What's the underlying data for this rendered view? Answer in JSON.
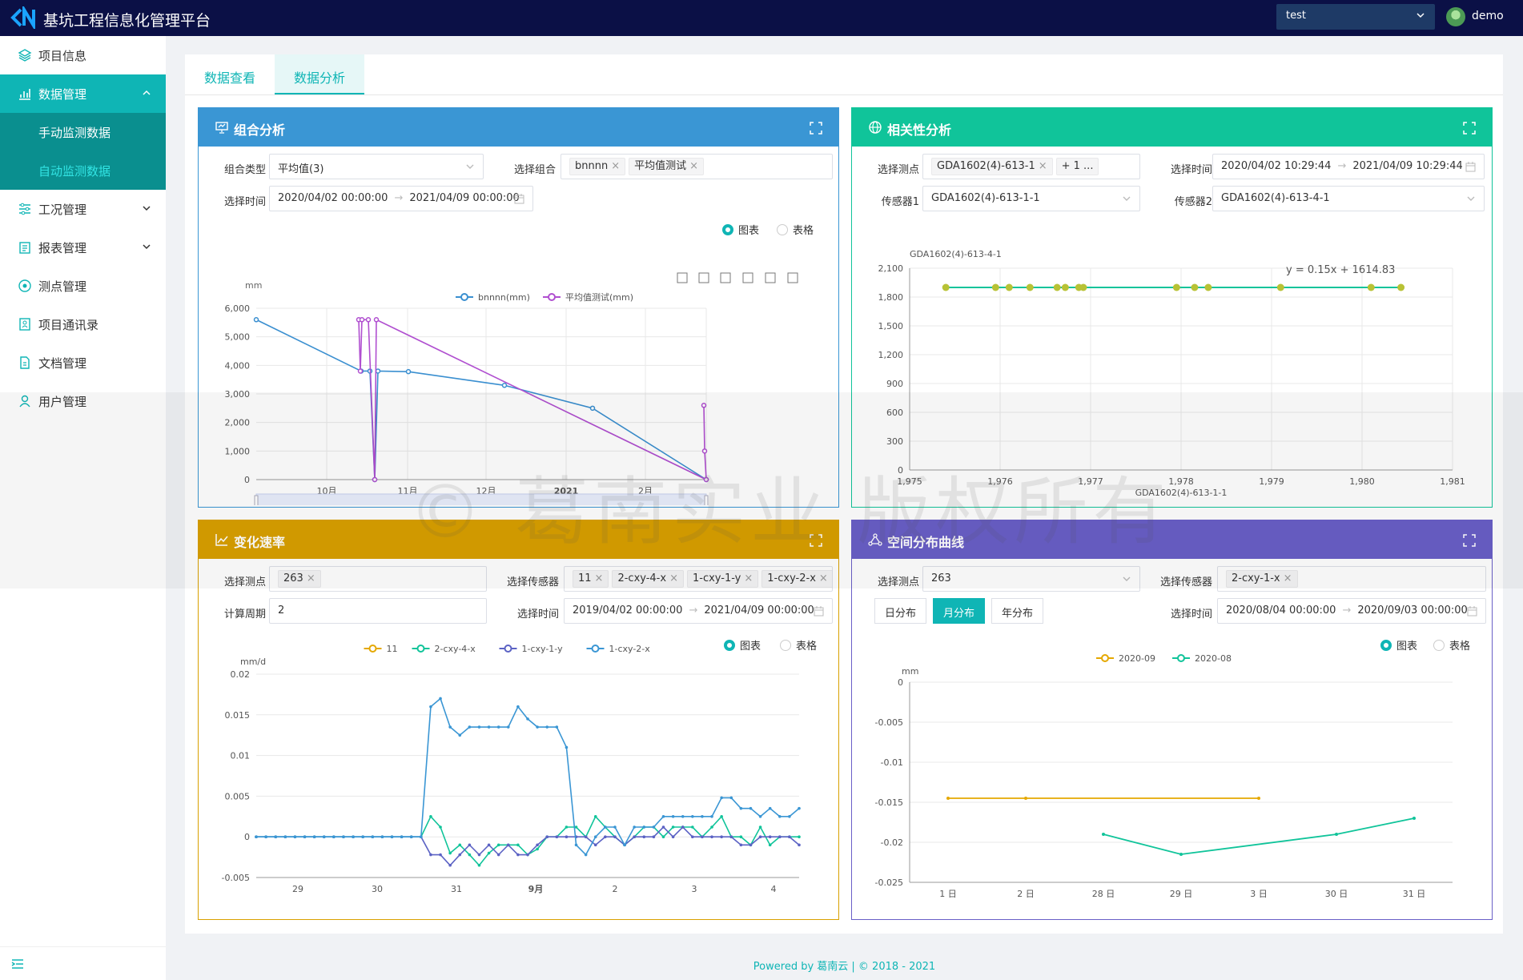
{
  "app": {
    "title": "基坑工程信息化管理平台",
    "project": "test",
    "user": "demo"
  },
  "colors": {
    "header": "#0b1046",
    "accent": "#0fb5b5",
    "combo": "#3a96d4",
    "corr": "#10c49a",
    "rate": "#d9a000",
    "spatial": "#6a5fc7"
  },
  "sidebar": {
    "items": [
      {
        "label": "项目信息",
        "icon": "layers-icon"
      },
      {
        "label": "数据管理",
        "icon": "bar-chart-icon",
        "children": [
          "手动监测数据",
          "自动监测数据"
        ]
      },
      {
        "label": "工况管理",
        "icon": "sliders-icon"
      },
      {
        "label": "报表管理",
        "icon": "clipboard-icon"
      },
      {
        "label": "测点管理",
        "icon": "target-icon"
      },
      {
        "label": "项目通讯录",
        "icon": "contacts-icon"
      },
      {
        "label": "文档管理",
        "icon": "document-icon"
      },
      {
        "label": "用户管理",
        "icon": "user-icon"
      }
    ]
  },
  "tabs": [
    "数据查看",
    "数据分析"
  ],
  "common": {
    "chart": "图表",
    "table": "表格"
  },
  "combo": {
    "title": "组合分析",
    "type_label": "组合类型",
    "type_value": "平均值(3)",
    "group_label": "选择组合",
    "group_tags": [
      "bnnnn",
      "平均值测试"
    ],
    "time_label": "选择时间",
    "time_start": "2020/04/02 00:00:00",
    "time_end": "2021/04/09 00:00:00"
  },
  "corr": {
    "title": "相关性分析",
    "point_label": "选择测点",
    "point_tags": [
      "GDA1602(4)-613-1",
      "+ 1 ..."
    ],
    "time_label": "选择时间",
    "time_start": "2020/04/02 10:29:44",
    "time_end": "2021/04/09 10:29:44",
    "s1_label": "传感器1",
    "s1_value": "GDA1602(4)-613-1-1",
    "s2_label": "传感器2",
    "s2_value": "GDA1602(4)-613-4-1"
  },
  "rate": {
    "title": "变化速率",
    "point_label": "选择测点",
    "point_tags": [
      "263"
    ],
    "sensor_label": "选择传感器",
    "sensor_tags": [
      "11",
      "2-cxy-4-x",
      "1-cxy-1-y",
      "1-cxy-2-x"
    ],
    "period_label": "计算周期",
    "period_value": "2",
    "time_label": "选择时间",
    "time_start": "2019/04/02 00:00:00",
    "time_end": "2021/04/09 00:00:00"
  },
  "spatial": {
    "title": "空间分布曲线",
    "point_label": "选择测点",
    "point_value": "263",
    "sensor_label": "选择传感器",
    "sensor_tags": [
      "2-cxy-1-x"
    ],
    "dist": [
      "日分布",
      "月分布",
      "年分布"
    ],
    "time_label": "选择时间",
    "time_start": "2020/08/04 00:00:00",
    "time_end": "2020/09/03 00:00:00"
  },
  "footer": {
    "text": "Powered by 葛南云 | © 2018 - 2021"
  },
  "watermark": "© 葛南实业 版权所有",
  "chart_data": [
    {
      "type": "line",
      "ylabel": "mm",
      "ylim": [
        0,
        6000
      ],
      "y_ticks": [
        "0",
        "1,000",
        "2,000",
        "3,000",
        "4,000",
        "5,000",
        "6,000"
      ],
      "x_ticks": [
        "10月",
        "11月",
        "12月",
        "2021",
        "2月"
      ],
      "legend": "top-center",
      "series": [
        {
          "name": "bnnnn(mm)",
          "color": "#3a8fd0",
          "points": [
            [
              0,
              5600
            ],
            [
              131,
              3800
            ],
            [
              142,
              3800
            ],
            [
              148,
              0
            ],
            [
              152,
              3800
            ],
            [
              190,
              3780
            ],
            [
              310,
              3300
            ],
            [
              420,
              2500
            ],
            [
              562,
              0
            ]
          ]
        },
        {
          "name": "平均值测试(mm)",
          "color": "#b04fd0",
          "points": [
            [
              128,
              5600
            ],
            [
              130,
              3800
            ],
            [
              132,
              5600
            ],
            [
              140,
              5600
            ],
            [
              148,
              0
            ],
            [
              150,
              5600
            ],
            [
              562,
              0
            ],
            [
              560,
              1000
            ],
            [
              559,
              2600
            ]
          ]
        }
      ],
      "x_positions": [
        88,
        189,
        287,
        387,
        486
      ],
      "x_range": [
        0,
        562
      ]
    },
    {
      "type": "scatter",
      "title": "",
      "xlabel": "GDA1602(4)-613-1-1",
      "ylabel": "GDA1602(4)-613-4-1",
      "xlim": [
        1975,
        1981
      ],
      "ylim": [
        0,
        2100
      ],
      "x_ticks": [
        "1,975",
        "1,976",
        "1,977",
        "1,978",
        "1,979",
        "1,980",
        "1,981"
      ],
      "y_ticks": [
        "0",
        "300",
        "600",
        "900",
        "1,200",
        "1,500",
        "1,800",
        "2,100"
      ],
      "annotation": "y = 0.15x + 1614.83",
      "points_x": [
        1975.4,
        1975.95,
        1976.1,
        1976.33,
        1976.63,
        1976.72,
        1976.87,
        1976.92,
        1977.95,
        1978.15,
        1978.3,
        1979.1,
        1980.1,
        1980.43
      ],
      "y_value": 1900
    },
    {
      "type": "line",
      "ylabel": "mm/d",
      "ylim": [
        -0.005,
        0.02
      ],
      "y_ticks": [
        "-0.005",
        "0",
        "0.005",
        "0.01",
        "0.015",
        "0.02"
      ],
      "x_ticks": [
        "29",
        "30",
        "31",
        "9月",
        "2",
        "3",
        "4"
      ],
      "legend": "top-center",
      "series": [
        {
          "name": "11",
          "color": "#e5a800",
          "values": []
        },
        {
          "name": "2-cxy-4-x",
          "color": "#10c49a",
          "values": [
            0,
            0,
            0,
            0,
            0,
            0,
            0,
            0,
            0,
            0,
            0,
            0,
            0,
            0,
            0,
            0,
            0,
            0,
            0.0025,
            0.0012,
            -0.002,
            -0.001,
            -0.0022,
            -0.0035,
            -0.002,
            -0.001,
            -0.001,
            -0.001,
            -0.0022,
            -0.0015,
            0,
            0,
            0.0012,
            0.0012,
            0,
            0.0025,
            0.0012,
            0,
            -0.001,
            0,
            0.0012,
            0.0012,
            0,
            0.0012,
            0.0012,
            0.0012,
            0,
            0.0012,
            0.0025,
            0,
            0,
            -0.001,
            0.0012,
            -0.001,
            0,
            0,
            0
          ]
        },
        {
          "name": "1-cxy-1-y",
          "color": "#5b62c4",
          "values": [
            0,
            0,
            0,
            0,
            0,
            0,
            0,
            0,
            0,
            0,
            0,
            0,
            0,
            0,
            0,
            0,
            0,
            0,
            -0.0022,
            -0.0022,
            -0.0035,
            -0.0022,
            -0.001,
            -0.0022,
            -0.001,
            -0.0022,
            -0.001,
            -0.0022,
            -0.0022,
            -0.001,
            0,
            0,
            0,
            0,
            0,
            -0.001,
            0,
            0,
            -0.001,
            0,
            0,
            0,
            0.0012,
            0,
            0.0012,
            0,
            0,
            0,
            0,
            0,
            -0.001,
            -0.001,
            0,
            0,
            0,
            0,
            -0.001
          ]
        },
        {
          "name": "1-cxy-2-x",
          "color": "#3a96d4",
          "values": [
            0,
            0,
            0,
            0,
            0,
            0,
            0,
            0,
            0,
            0,
            0,
            0,
            0,
            0,
            0,
            0,
            0,
            0,
            0.016,
            0.017,
            0.0135,
            0.0125,
            0.0135,
            0.0135,
            0.0135,
            0.0135,
            0.0135,
            0.016,
            0.0145,
            0.0135,
            0.0135,
            0.0135,
            0.011,
            -0.001,
            -0.0022,
            0,
            0.0012,
            0.0012,
            -0.001,
            0.0012,
            0.0012,
            0.0012,
            0.0025,
            0.0025,
            0.0025,
            0.0025,
            0.0025,
            0.0025,
            0.0048,
            0.0048,
            0.0035,
            0.0035,
            0.0025,
            0.0035,
            0.0025,
            0.0025,
            0.0035
          ]
        }
      ]
    },
    {
      "type": "line",
      "ylabel": "mm",
      "ylim": [
        -0.025,
        0
      ],
      "y_ticks": [
        "-0.025",
        "-0.02",
        "-0.015",
        "-0.01",
        "-0.005",
        "0"
      ],
      "x_ticks": [
        "1 日",
        "2 日",
        "28 日",
        "29 日",
        "3 日",
        "30 日",
        "31 日"
      ],
      "legend": "top-center",
      "series": [
        {
          "name": "2020-09",
          "color": "#e5a800",
          "points": [
            [
              0,
              -0.0145
            ],
            [
              1,
              -0.0145
            ],
            [
              4,
              -0.0145
            ]
          ]
        },
        {
          "name": "2020-08",
          "color": "#10c49a",
          "points": [
            [
              2,
              -0.019
            ],
            [
              3,
              -0.0215
            ],
            [
              5,
              -0.019
            ],
            [
              6,
              -0.017
            ]
          ]
        }
      ]
    }
  ]
}
